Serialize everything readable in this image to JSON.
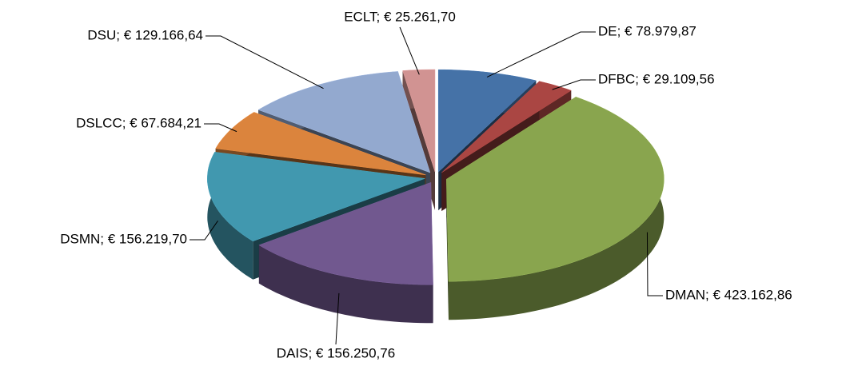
{
  "chart_data": {
    "type": "pie",
    "values": [
      78979.87,
      29109.56,
      423162.86,
      156250.76,
      156219.7,
      67684.21,
      129166.64,
      25261.7
    ],
    "value_labels": [
      "DE; € 78.979,87",
      "DFBC; € 29.109,56",
      "DMAN; € 423.162,86",
      "DAIS; € 156.250,76",
      "DSMN; € 156.219,70",
      "DSLCC; € 67.684,21",
      "DSU; € 129.166,64",
      "ECLT; € 25.261,70"
    ],
    "colors": [
      "#4572a7",
      "#aa4643",
      "#89a54e",
      "#71588f",
      "#4198af",
      "#db843d",
      "#93a9cf",
      "#d19392"
    ]
  }
}
